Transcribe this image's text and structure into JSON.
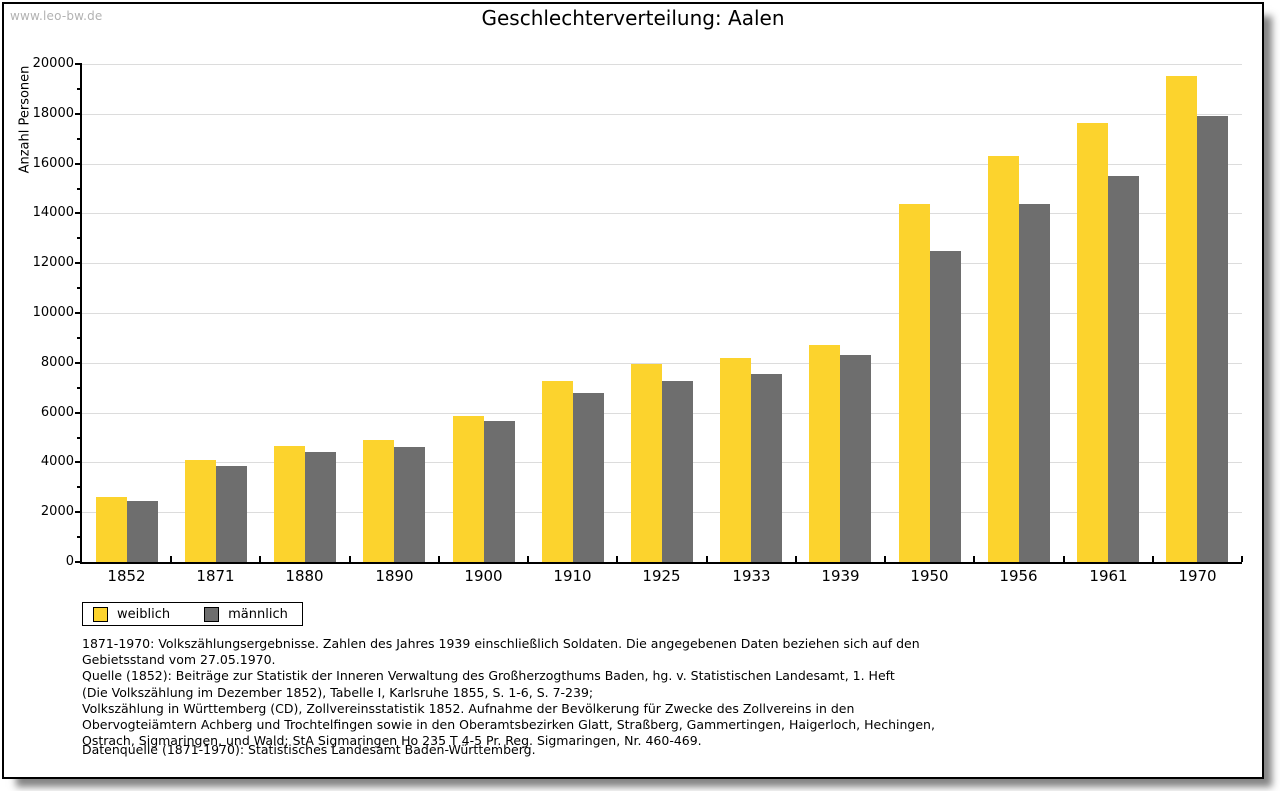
{
  "watermark": "www.leo-bw.de",
  "title": "Geschlechterverteilung: Aalen",
  "chart_data": {
    "type": "bar",
    "title": "Geschlechterverteilung: Aalen",
    "xlabel": "",
    "ylabel": "Anzahl Personen",
    "categories": [
      "1852",
      "1871",
      "1880",
      "1890",
      "1900",
      "1910",
      "1925",
      "1933",
      "1939",
      "1950",
      "1956",
      "1961",
      "1970"
    ],
    "series": [
      {
        "name": "weiblich",
        "color": "#FCD32D",
        "values": [
          2600,
          4100,
          4670,
          4900,
          5850,
          7270,
          7960,
          8200,
          8700,
          14390,
          16290,
          17650,
          19500
        ]
      },
      {
        "name": "männlich",
        "color": "#6E6E6E",
        "values": [
          2450,
          3850,
          4400,
          4600,
          5650,
          6780,
          7280,
          7550,
          8330,
          12500,
          14390,
          15490,
          17900
        ]
      }
    ],
    "ylim": [
      0,
      20000
    ],
    "ytick_step": 2000,
    "minor_tick_step": 1000,
    "grid": "horizontal-major",
    "legend_position": "bottom-left"
  },
  "footnotes": [
    "1871-1970: Volkszählungsergebnisse. Zahlen des Jahres 1939 einschließlich Soldaten. Die angegebenen Daten beziehen sich auf den",
    "Gebietsstand vom 27.05.1970.",
    "Quelle (1852): Beiträge zur Statistik der Inneren Verwaltung des Großherzogthums Baden, hg. v. Statistischen Landesamt, 1. Heft",
    "(Die Volkszählung im Dezember 1852), Tabelle I, Karlsruhe 1855, S. 1-6, S. 7-239;",
    "Volkszählung in Württemberg (CD), Zollvereinsstatistik 1852. Aufnahme der Bevölkerung für Zwecke des Zollvereins in den",
    "Obervogteiämtern Achberg und Trochtelfingen sowie in den Oberamtsbezirken Glatt, Straßberg, Gammertingen, Haigerloch, Hechingen,",
    "Ostrach, Sigmaringen, und Wald; StA Sigmaringen Ho 235 T 4-5 Pr. Reg. Sigmaringen, Nr. 460-469."
  ],
  "datenquelle": "Datenquelle (1871-1970): Statistisches Landesamt Baden-Württemberg.",
  "colors": {
    "weiblich": "#FCD32D",
    "maennlich": "#6E6E6E",
    "grid": "#DCDCDC",
    "axis": "#000000",
    "watermark": "#B2B2B2",
    "shadow": "#6E6E6E",
    "background": "#FFFFFF"
  }
}
